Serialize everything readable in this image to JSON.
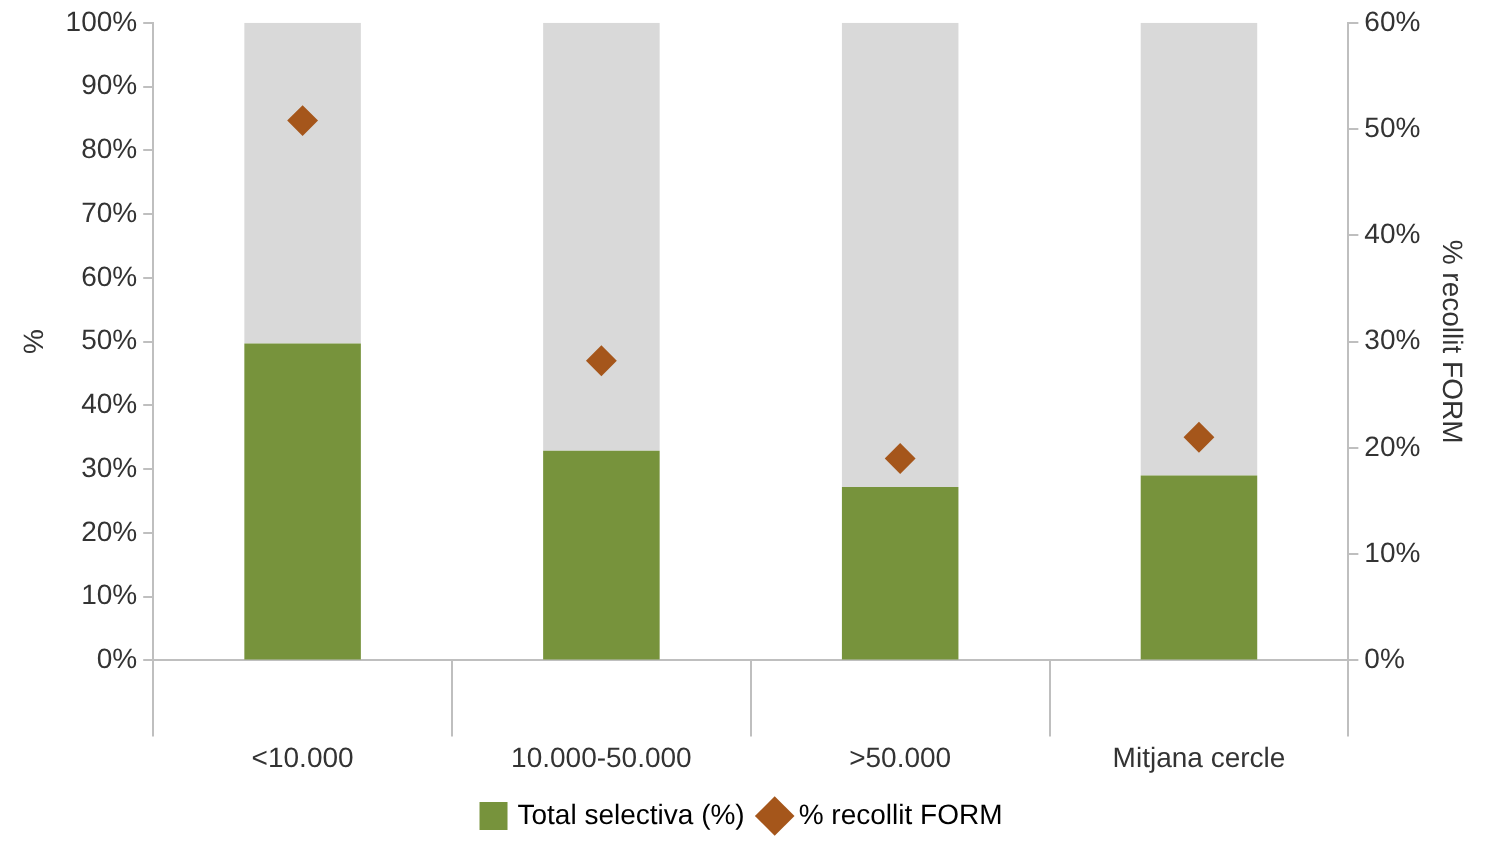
{
  "chart_data": {
    "type": "bar",
    "stacked": true,
    "categories": [
      "<10.000",
      "10.000-50.000",
      ">50.000",
      "Mitjana cercle"
    ],
    "series": [
      {
        "name": "Total selectiva (%)",
        "color": "#77933c",
        "values": [
          49.7,
          32.9,
          27.2,
          29.0
        ]
      },
      {
        "color": "#d9d9d9",
        "values": [
          50.3,
          67.1,
          72.8,
          71.0
        ]
      },
      {
        "name": "% recollit FORM",
        "type": "scatter",
        "axis": "y2",
        "color": "#a5561b",
        "values": [
          50.8,
          28.2,
          19.0,
          21.0
        ],
        "x": [
          "<10.000",
          "10.000-50.000",
          ">50.000",
          "Mitjana cercle"
        ]
      }
    ],
    "ylabel": "%",
    "y2label": "% recollit FORM",
    "ylim": [
      0,
      100
    ],
    "yticks": [
      {
        "value": 0,
        "label": "0%"
      },
      {
        "value": 10,
        "label": "10%"
      },
      {
        "value": 20,
        "label": "20%"
      },
      {
        "value": 30,
        "label": "30%"
      },
      {
        "value": 40,
        "label": "40%"
      },
      {
        "value": 50,
        "label": "50%"
      },
      {
        "value": 60,
        "label": "60%"
      },
      {
        "value": 70,
        "label": "70%"
      },
      {
        "value": 80,
        "label": "80%"
      },
      {
        "value": 90,
        "label": "90%"
      },
      {
        "value": 100,
        "label": "100%"
      }
    ],
    "y2lim": [
      0,
      60
    ],
    "y2ticks": [
      {
        "value": 0,
        "label": "0%"
      },
      {
        "value": 10,
        "label": "10%"
      },
      {
        "value": 20,
        "label": "20%"
      },
      {
        "value": 30,
        "label": "30%"
      },
      {
        "value": 40,
        "label": "40%"
      },
      {
        "value": 50,
        "label": "50%"
      },
      {
        "value": 60,
        "label": "60%"
      }
    ],
    "grid": false,
    "legend": "bottom",
    "marker": "diamond"
  }
}
